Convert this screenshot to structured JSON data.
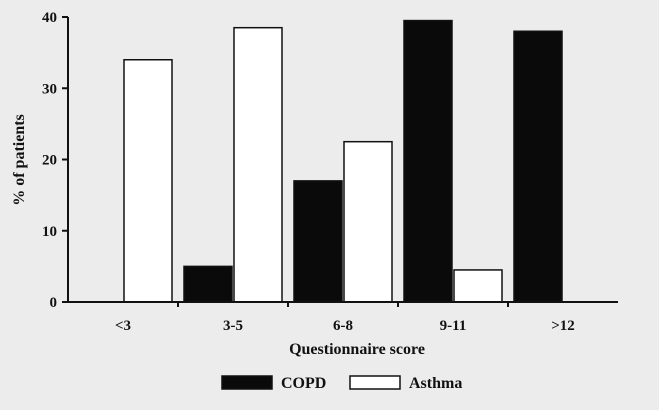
{
  "chart_data": {
    "type": "bar",
    "title": "",
    "xlabel": "Questionnaire score",
    "ylabel": "% of patients",
    "categories": [
      "<3",
      "3-5",
      "6-8",
      "9-11",
      ">12"
    ],
    "series": [
      {
        "name": "COPD",
        "values": [
          0,
          5,
          17,
          39.5,
          38
        ]
      },
      {
        "name": "Asthma",
        "values": [
          34,
          38.5,
          22.5,
          4.5,
          0
        ]
      }
    ],
    "ylim": [
      0,
      40
    ],
    "yticks": [
      0,
      10,
      20,
      30,
      40
    ],
    "grid": false,
    "legend_position": "bottom"
  },
  "colors": {
    "background": "#ececec",
    "copd_fill": "#0a0a0a",
    "asthma_fill": "#ffffff",
    "stroke": "#111111"
  }
}
